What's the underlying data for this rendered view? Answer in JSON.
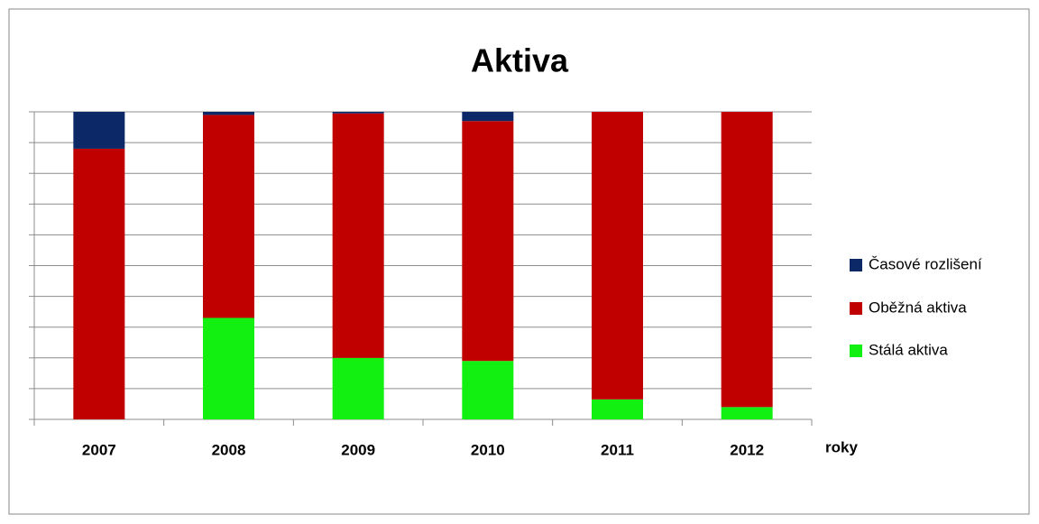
{
  "chart_data": {
    "type": "stacked-bar",
    "title": "Aktiva",
    "x_label": "roky",
    "categories": [
      "2007",
      "2008",
      "2009",
      "2010",
      "2011",
      "2012"
    ],
    "series": [
      {
        "name": "Stálá aktiva",
        "color": "#12f012",
        "values": [
          0,
          33,
          20,
          19,
          6.5,
          4
        ]
      },
      {
        "name": "Oběžná aktiva",
        "color": "#c00000",
        "values": [
          88,
          66,
          79.5,
          78,
          93.5,
          96
        ]
      },
      {
        "name": "Časové rozlišení",
        "color": "#0c2866",
        "values": [
          12,
          1,
          0.5,
          3,
          0,
          0
        ]
      }
    ],
    "ylim": [
      0,
      100
    ],
    "yticks": [
      0,
      10,
      20,
      30,
      40,
      50,
      60,
      70,
      80,
      90,
      100
    ],
    "grid": true,
    "legend": "right"
  }
}
